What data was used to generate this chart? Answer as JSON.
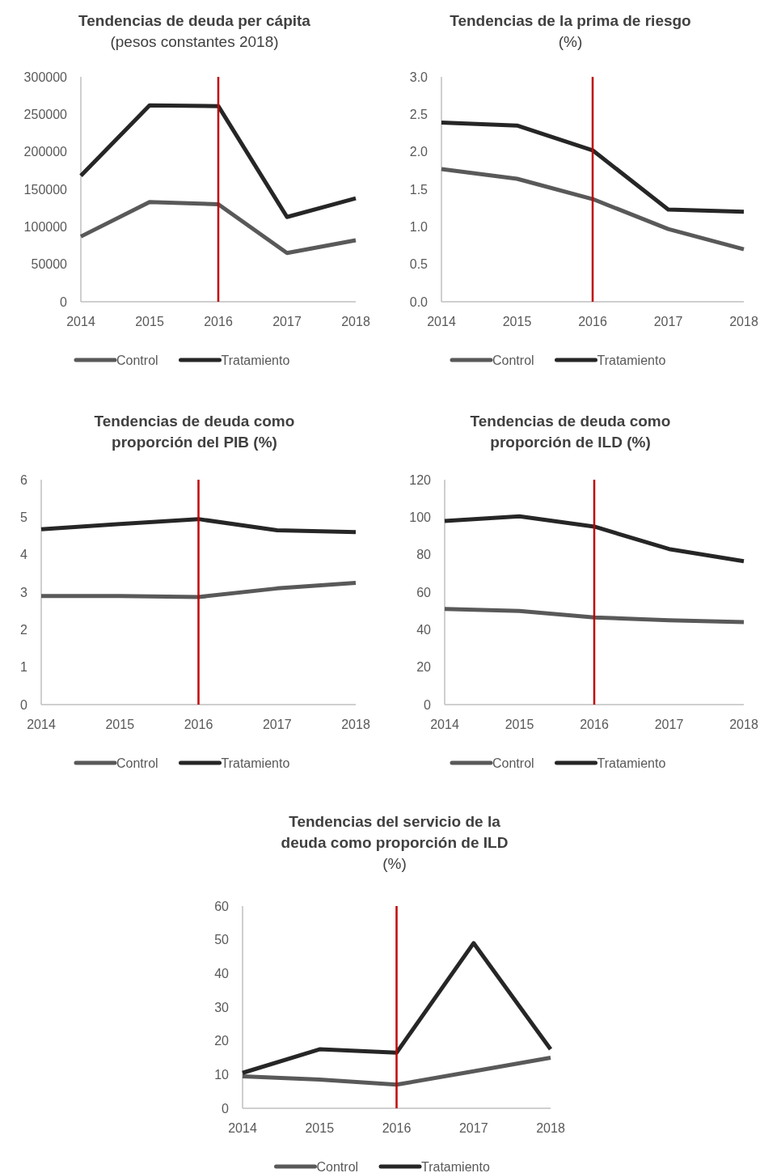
{
  "chart_data": [
    {
      "type": "line",
      "title": "Tendencias de deuda per cápita",
      "subtitle": "(pesos constantes 2018)",
      "x": [
        2014,
        2015,
        2016,
        2017,
        2018
      ],
      "xlim": [
        2014,
        2018
      ],
      "xticks": [
        2014,
        2015,
        2016,
        2017,
        2018
      ],
      "ylim": [
        0,
        300000
      ],
      "yticks": [
        0,
        50000,
        100000,
        150000,
        200000,
        250000,
        300000
      ],
      "legend": "bottom",
      "grid": false,
      "series": [
        {
          "name": "Control",
          "color": "#595959",
          "values": [
            87000,
            133000,
            130000,
            65000,
            82000
          ]
        },
        {
          "name": "Tratamiento",
          "color": "#262626",
          "values": [
            168000,
            262000,
            261000,
            113000,
            138000
          ]
        }
      ],
      "ref_lines": [
        {
          "axis": "x",
          "value": 2016,
          "color": "#c00000"
        }
      ]
    },
    {
      "type": "line",
      "title": "Tendencias de la prima de riesgo",
      "subtitle": "(%)",
      "x": [
        2014,
        2015,
        2016,
        2017,
        2018
      ],
      "xlim": [
        2014,
        2018
      ],
      "xticks": [
        2014,
        2015,
        2016,
        2017,
        2018
      ],
      "ylim": [
        0,
        3
      ],
      "yticks": [
        {
          "value": 0,
          "label": "0.0"
        },
        0.5,
        {
          "value": 1,
          "label": "1.0"
        },
        1.5,
        {
          "value": 2,
          "label": "2.0"
        },
        2.5,
        {
          "value": 3,
          "label": "3.0"
        }
      ],
      "legend": "bottom",
      "grid": false,
      "series": [
        {
          "name": "Control",
          "color": "#595959",
          "values": [
            1.77,
            1.64,
            1.37,
            0.97,
            0.7
          ]
        },
        {
          "name": "Tratamiento",
          "color": "#262626",
          "values": [
            2.39,
            2.35,
            2.02,
            1.23,
            1.2
          ]
        }
      ],
      "ref_lines": [
        {
          "axis": "x",
          "value": 2016,
          "color": "#c00000"
        }
      ]
    },
    {
      "type": "line",
      "title": "Tendencias de deuda como proporción del PIB (%)",
      "x": [
        2014,
        2015,
        2016,
        2017,
        2018
      ],
      "xlim": [
        2014,
        2018
      ],
      "xticks": [
        2014,
        2015,
        2016,
        2017,
        2018
      ],
      "ylim": [
        0,
        6
      ],
      "yticks": [
        0,
        1,
        2,
        3,
        4,
        5,
        6
      ],
      "legend": "bottom",
      "grid": false,
      "series": [
        {
          "name": "Control",
          "color": "#595959",
          "values": [
            2.9,
            2.9,
            2.87,
            3.1,
            3.25
          ]
        },
        {
          "name": "Tratamiento",
          "color": "#262626",
          "values": [
            4.68,
            4.82,
            4.95,
            4.65,
            4.6
          ]
        }
      ],
      "ref_lines": [
        {
          "axis": "x",
          "value": 2016,
          "color": "#c00000"
        }
      ]
    },
    {
      "type": "line",
      "title": "Tendencias de deuda como proporción de ILD (%)",
      "x": [
        2014,
        2015,
        2016,
        2017,
        2018
      ],
      "xlim": [
        2014,
        2018
      ],
      "xticks": [
        2014,
        2015,
        2016,
        2017,
        2018
      ],
      "ylim": [
        0,
        120
      ],
      "yticks": [
        0,
        20,
        40,
        60,
        80,
        100,
        120
      ],
      "legend": "bottom",
      "grid": false,
      "series": [
        {
          "name": "Control",
          "color": "#595959",
          "values": [
            51,
            50,
            46.5,
            45,
            44
          ]
        },
        {
          "name": "Tratamiento",
          "color": "#262626",
          "values": [
            98,
            100.5,
            95,
            83,
            76.5
          ]
        }
      ],
      "ref_lines": [
        {
          "axis": "x",
          "value": 2016,
          "color": "#c00000"
        }
      ]
    },
    {
      "type": "line",
      "title": "Tendencias del servicio de la deuda como proporción de ILD",
      "subtitle": "(%)",
      "x": [
        2014,
        2015,
        2016,
        2017,
        2018
      ],
      "xlim": [
        2014,
        2018
      ],
      "xticks": [
        2014,
        2015,
        2016,
        2017,
        2018
      ],
      "ylim": [
        0,
        60
      ],
      "yticks": [
        0,
        10,
        20,
        30,
        40,
        50,
        60
      ],
      "legend": "bottom",
      "grid": false,
      "series": [
        {
          "name": "Control",
          "color": "#595959",
          "values": [
            9.5,
            8.5,
            7,
            11,
            15
          ]
        },
        {
          "name": "Tratamiento",
          "color": "#262626",
          "values": [
            10.5,
            17.5,
            16.5,
            49,
            17.5
          ]
        }
      ],
      "ref_lines": [
        {
          "axis": "x",
          "value": 2016,
          "color": "#c00000"
        }
      ]
    }
  ]
}
